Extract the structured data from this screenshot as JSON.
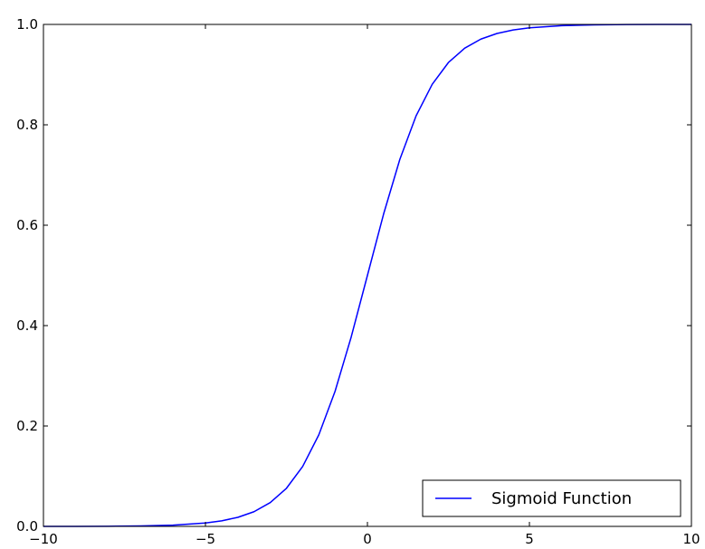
{
  "chart_data": {
    "type": "line",
    "title": "",
    "xlabel": "",
    "ylabel": "",
    "xlim": [
      -10,
      10
    ],
    "ylim": [
      0.0,
      1.0
    ],
    "grid": false,
    "legend": {
      "placement": "bottom-right"
    },
    "xticks": [
      "−10",
      "−5",
      "0",
      "5",
      "10"
    ],
    "xtick_values": [
      -10,
      -5,
      0,
      5,
      10
    ],
    "yticks": [
      "0.0",
      "0.2",
      "0.4",
      "0.6",
      "0.8",
      "1.0"
    ],
    "ytick_values": [
      0.0,
      0.2,
      0.4,
      0.6,
      0.8,
      1.0
    ],
    "series": [
      {
        "name": "Sigmoid Function",
        "color": "#0000ff",
        "x": [
          -10,
          -9,
          -8,
          -7,
          -6,
          -5,
          -4.5,
          -4,
          -3.5,
          -3,
          -2.5,
          -2,
          -1.5,
          -1,
          -0.5,
          0,
          0.5,
          1,
          1.5,
          2,
          2.5,
          3,
          3.5,
          4,
          4.5,
          5,
          6,
          7,
          8,
          9,
          10
        ],
        "y": [
          0.0,
          0.0001,
          0.0003,
          0.0009,
          0.0025,
          0.0067,
          0.011,
          0.018,
          0.0293,
          0.0474,
          0.0759,
          0.1192,
          0.1824,
          0.2689,
          0.3775,
          0.5,
          0.6225,
          0.7311,
          0.8176,
          0.8808,
          0.9241,
          0.9526,
          0.9707,
          0.982,
          0.989,
          0.9933,
          0.9975,
          0.9991,
          0.9997,
          0.9999,
          1.0
        ]
      }
    ]
  }
}
